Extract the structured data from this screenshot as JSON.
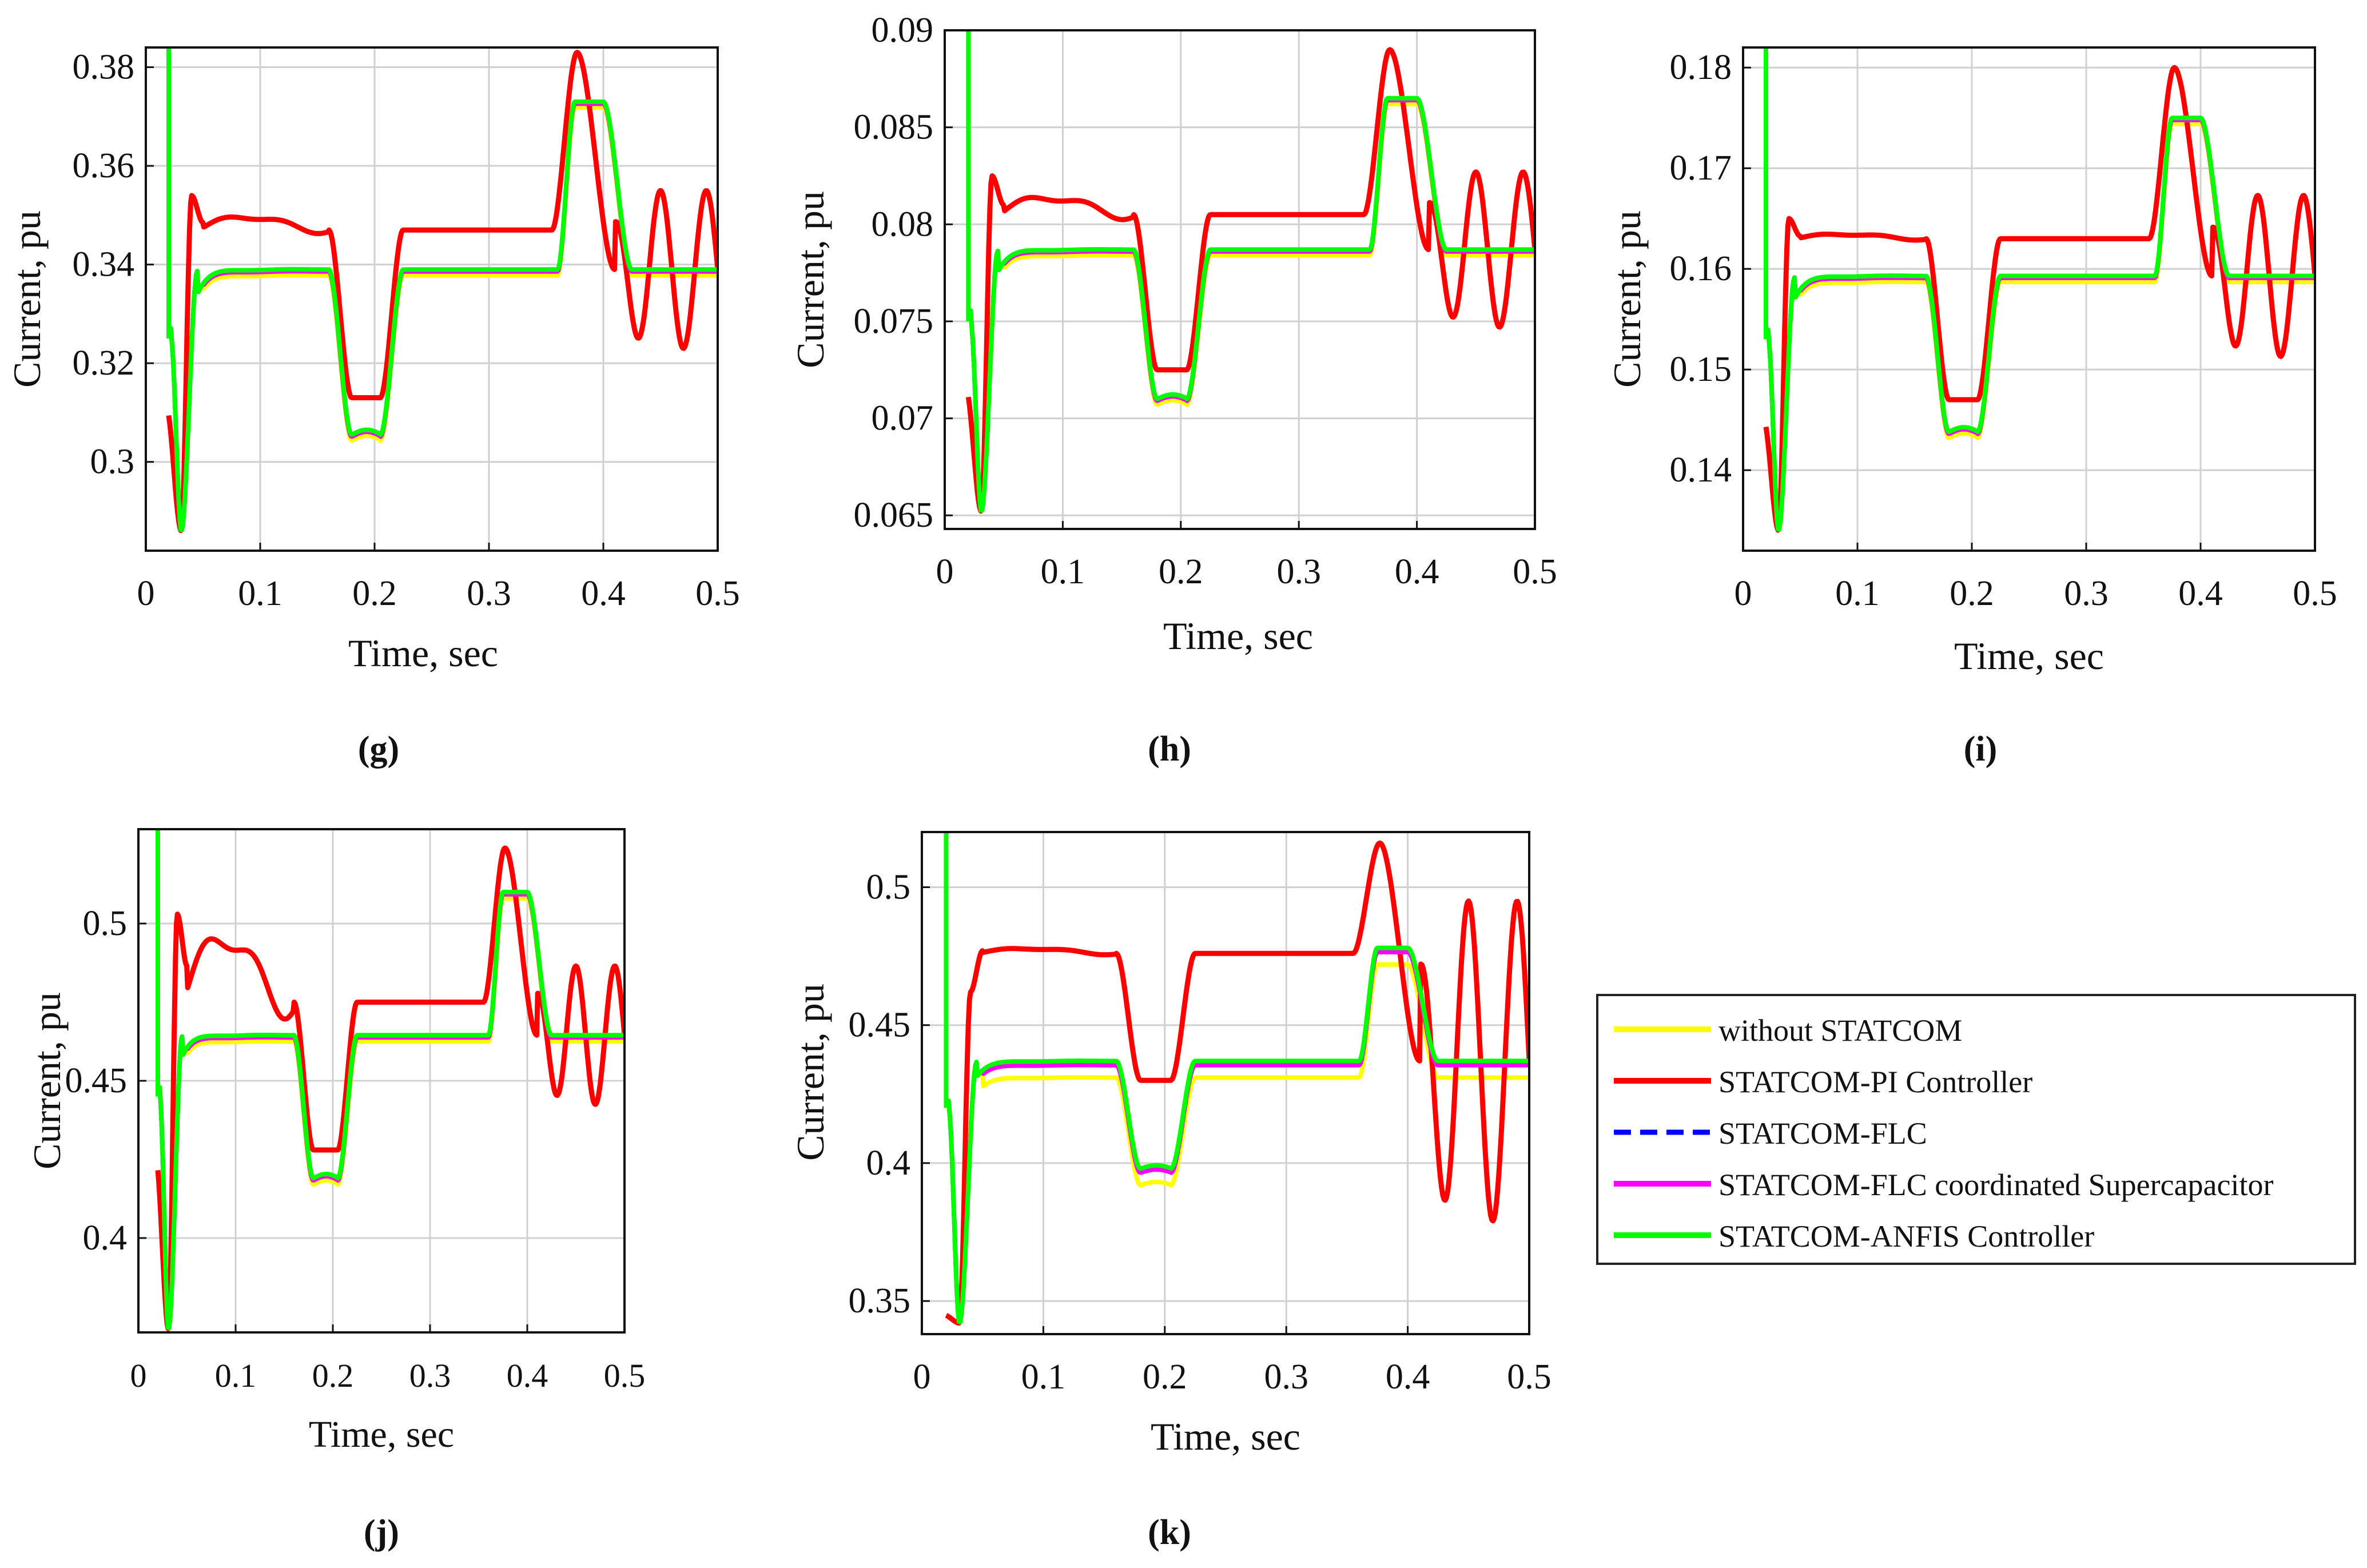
{
  "figure": {
    "background": "#ffffff"
  },
  "series_styles": [
    {
      "name": "without STATCOM",
      "color": "#ffff00",
      "dash": ""
    },
    {
      "name": "STATCOM-PI Controller",
      "color": "#ff0000",
      "dash": ""
    },
    {
      "name": "STATCOM-FLC",
      "color": "#0000ff",
      "dash": "dashed"
    },
    {
      "name": "STATCOM-FLC coordinated Supercapacitor",
      "color": "#ff00ff",
      "dash": ""
    },
    {
      "name": "STATCOM-ANFIS Controller",
      "color": "#00ff00",
      "dash": ""
    }
  ],
  "legend": {
    "entries": [
      "without STATCOM",
      "STATCOM-PI Controller",
      "STATCOM-FLC",
      "STATCOM-FLC coordinated Supercapacitor",
      "STATCOM-ANFIS Controller"
    ]
  },
  "chart_data": [
    {
      "type": "line",
      "caption": "(g)",
      "xlabel": "Time, sec",
      "ylabel": "Current, pu",
      "xlim": [
        0,
        0.5
      ],
      "ylim": [
        0.282,
        0.384
      ],
      "xticks": [
        0,
        0.1,
        0.2,
        0.3,
        0.4,
        0.5
      ],
      "xtick_labels": [
        "0",
        "0.1",
        "0.2",
        "0.3",
        "0.4",
        "0.5"
      ],
      "yticks": [
        0.3,
        0.32,
        0.34,
        0.36,
        0.38
      ],
      "ytick_labels": [
        "0.3",
        "0.32",
        "0.34",
        "0.36",
        "0.38"
      ],
      "grid": true,
      "profile": {
        "x": [
          0.02,
          0.03,
          0.04,
          0.05,
          0.1,
          0.16,
          0.175,
          0.2,
          0.215,
          0.36,
          0.375,
          0.4,
          0.43,
          0.5
        ],
        "steady": 0.339,
        "dip": 0.3055,
        "peak": 0.373,
        "init": 0.325,
        "trough": 0.286
      },
      "pi": {
        "steady": 0.347,
        "bump": 0.35,
        "spike": 0.354,
        "dip": 0.313,
        "peak": 0.383,
        "osc_amp": 0.016,
        "start": 0.311
      },
      "offsets": {
        "yellow": -0.0012,
        "magenta": -0.0004
      },
      "spike_top": 0.384
    },
    {
      "type": "line",
      "caption": "(h)",
      "xlabel": "Time, sec",
      "ylabel": "Current, pu",
      "xlim": [
        0,
        0.5
      ],
      "ylim": [
        0.0643,
        0.09
      ],
      "xticks": [
        0,
        0.1,
        0.2,
        0.3,
        0.4,
        0.5
      ],
      "xtick_labels": [
        "0",
        "0.1",
        "0.2",
        "0.3",
        "0.4",
        "0.5"
      ],
      "yticks": [
        0.065,
        0.07,
        0.075,
        0.08,
        0.085,
        0.09
      ],
      "ytick_labels": [
        "0.065",
        "0.07",
        "0.075",
        "0.08",
        "0.085",
        "0.09"
      ],
      "grid": true,
      "profile": {
        "x": [
          0.02,
          0.03,
          0.04,
          0.05,
          0.1,
          0.16,
          0.175,
          0.2,
          0.215,
          0.36,
          0.375,
          0.4,
          0.43,
          0.5
        ],
        "steady": 0.0787,
        "dip": 0.071,
        "peak": 0.0865,
        "init": 0.075,
        "trough": 0.0652
      },
      "pi": {
        "steady": 0.0805,
        "bump": 0.0815,
        "spike": 0.0825,
        "dip": 0.0725,
        "peak": 0.089,
        "osc_amp": 0.004,
        "start": 0.0715
      },
      "offsets": {
        "yellow": -0.0003,
        "magenta": -0.0001
      },
      "spike_top": 0.09
    },
    {
      "type": "line",
      "caption": "(i)",
      "xlabel": "Time, sec",
      "ylabel": "Current, pu",
      "xlim": [
        0,
        0.5
      ],
      "ylim": [
        0.132,
        0.182
      ],
      "xticks": [
        0,
        0.1,
        0.2,
        0.3,
        0.4,
        0.5
      ],
      "xtick_labels": [
        "0",
        "0.1",
        "0.2",
        "0.3",
        "0.4",
        "0.5"
      ],
      "yticks": [
        0.14,
        0.15,
        0.16,
        0.17,
        0.18
      ],
      "ytick_labels": [
        "0.14",
        "0.15",
        "0.16",
        "0.17",
        "0.18"
      ],
      "grid": true,
      "profile": {
        "x": [
          0.02,
          0.03,
          0.04,
          0.05,
          0.1,
          0.16,
          0.175,
          0.2,
          0.215,
          0.36,
          0.375,
          0.4,
          0.43,
          0.5
        ],
        "steady": 0.1593,
        "dip": 0.1438,
        "peak": 0.175,
        "init": 0.153,
        "trough": 0.134
      },
      "pi": {
        "steady": 0.163,
        "bump": 0.1635,
        "spike": 0.165,
        "dip": 0.147,
        "peak": 0.18,
        "osc_amp": 0.008,
        "start": 0.145
      },
      "offsets": {
        "yellow": -0.0006,
        "magenta": -0.0002
      },
      "spike_top": 0.182
    },
    {
      "type": "line",
      "caption": "(j)",
      "xlabel": "Time, sec",
      "ylabel": "Current, pu",
      "xlim": [
        0,
        0.5
      ],
      "ylim": [
        0.37,
        0.53
      ],
      "xticks": [
        0,
        0.1,
        0.2,
        0.3,
        0.4,
        0.5
      ],
      "xtick_labels": [
        "0",
        "0.1",
        "0.2",
        "0.3",
        "0.4",
        "0.5"
      ],
      "yticks": [
        0.4,
        0.45,
        0.5
      ],
      "ytick_labels": [
        "0.4",
        "0.45",
        "0.5"
      ],
      "grid": true,
      "profile": {
        "x": [
          0.02,
          0.03,
          0.04,
          0.05,
          0.1,
          0.16,
          0.175,
          0.2,
          0.215,
          0.36,
          0.375,
          0.4,
          0.43,
          0.5
        ],
        "steady": 0.4645,
        "dip": 0.419,
        "peak": 0.51,
        "init": 0.445,
        "trough": 0.371
      },
      "pi": {
        "steady": 0.475,
        "bump": 0.498,
        "spike": 0.503,
        "dip": 0.428,
        "peak": 0.524,
        "osc_amp": 0.022,
        "start": 0.425
      },
      "offsets": {
        "yellow": -0.002,
        "magenta": -0.0007
      },
      "spike_top": 0.53
    },
    {
      "type": "line",
      "caption": "(k)",
      "xlabel": "Time, sec",
      "ylabel": "Current, pu",
      "xlim": [
        0,
        0.5
      ],
      "ylim": [
        0.338,
        0.52
      ],
      "xticks": [
        0,
        0.1,
        0.2,
        0.3,
        0.4,
        0.5
      ],
      "xtick_labels": [
        "0",
        "0.1",
        "0.2",
        "0.3",
        "0.4",
        "0.5"
      ],
      "yticks": [
        0.35,
        0.4,
        0.45,
        0.5
      ],
      "ytick_labels": [
        "0.35",
        "0.4",
        "0.45",
        "0.5"
      ],
      "grid": true,
      "profile": {
        "x": [
          0.02,
          0.03,
          0.04,
          0.05,
          0.1,
          0.16,
          0.175,
          0.2,
          0.215,
          0.36,
          0.375,
          0.4,
          0.43,
          0.5
        ],
        "steady": 0.437,
        "dip": 0.398,
        "peak": 0.478,
        "init": 0.42,
        "trough": 0.342
      },
      "pi": {
        "steady": 0.476,
        "bump": 0.478,
        "spike": 0.462,
        "dip": 0.43,
        "peak": 0.516,
        "osc_amp": 0.058,
        "start": 0.345
      },
      "offsets": {
        "yellow": -0.006,
        "magenta": -0.0015
      },
      "spike_top": 0.52
    }
  ]
}
